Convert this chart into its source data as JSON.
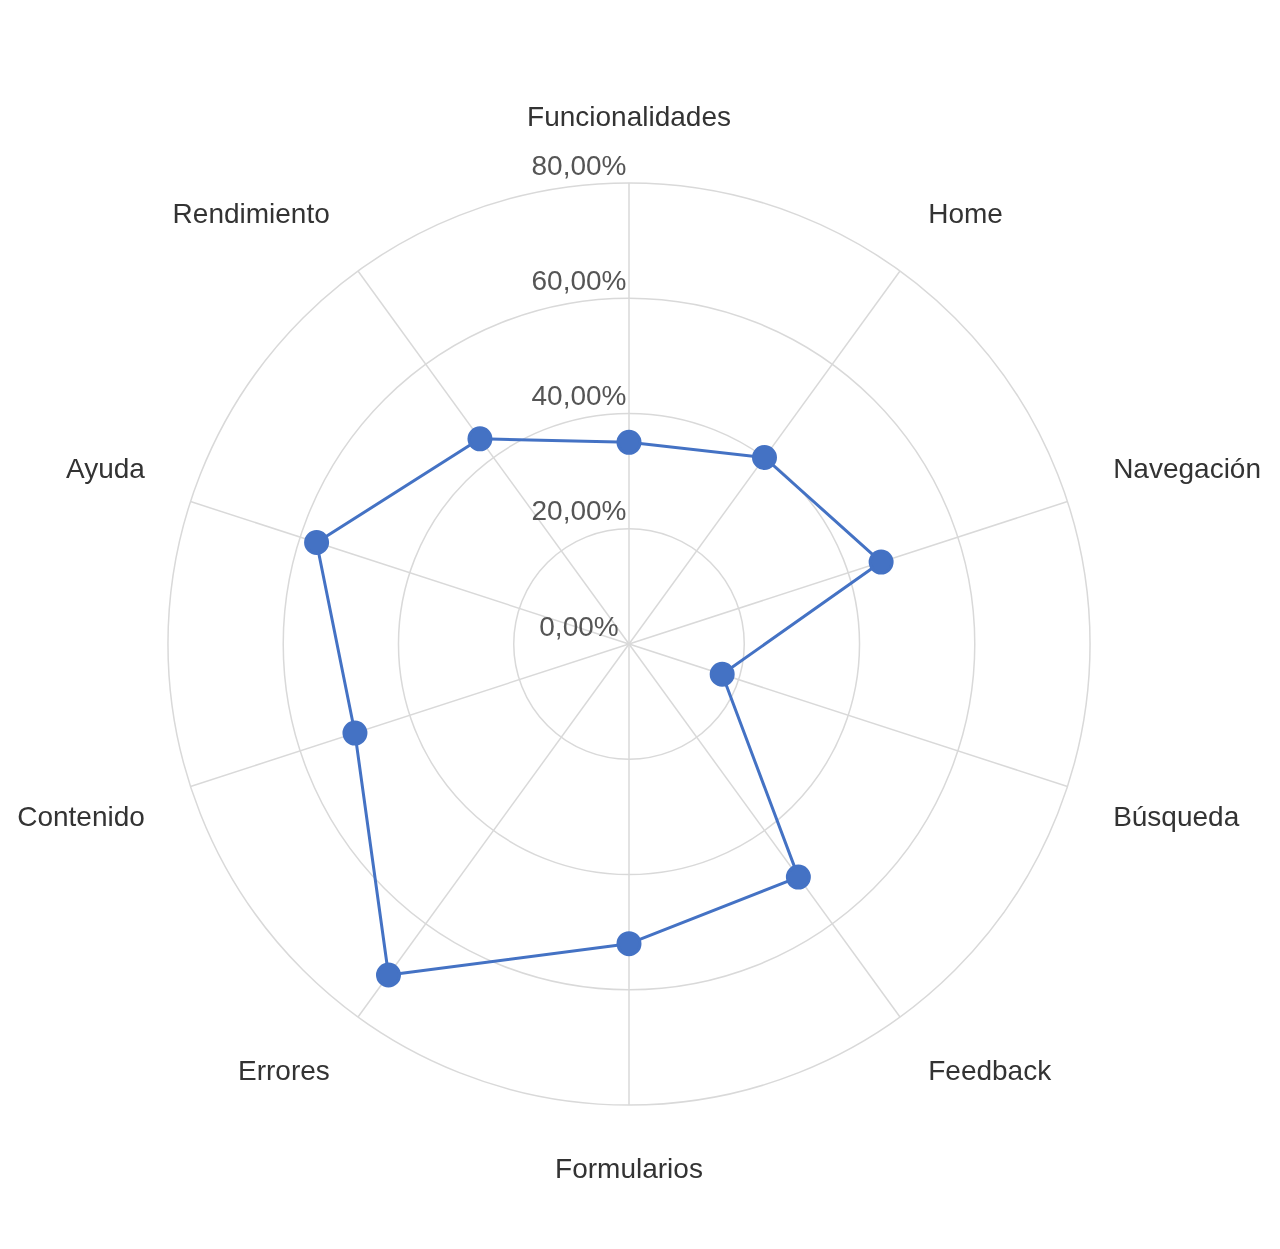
{
  "chart_data": {
    "type": "radar",
    "categories": [
      "Funcionalidades",
      "Home",
      "Navegación",
      "Búsqueda",
      "Feedback",
      "Formularios",
      "Errores",
      "Contenido",
      "Ayuda",
      "Rendimiento"
    ],
    "series": [
      {
        "color": "#4472c4",
        "values": [
          35,
          40,
          46,
          17,
          50,
          52,
          71,
          50,
          57,
          44
        ]
      }
    ],
    "ylim": [
      0,
      80
    ],
    "yticks": [
      {
        "value": 0,
        "label": "0,00%"
      },
      {
        "value": 20,
        "label": "20,00%"
      },
      {
        "value": 40,
        "label": "40,00%"
      },
      {
        "value": 60,
        "label": "60,00%"
      },
      {
        "value": 80,
        "label": "80,00%"
      }
    ],
    "grid": true,
    "legend": false,
    "marker": "circle"
  }
}
